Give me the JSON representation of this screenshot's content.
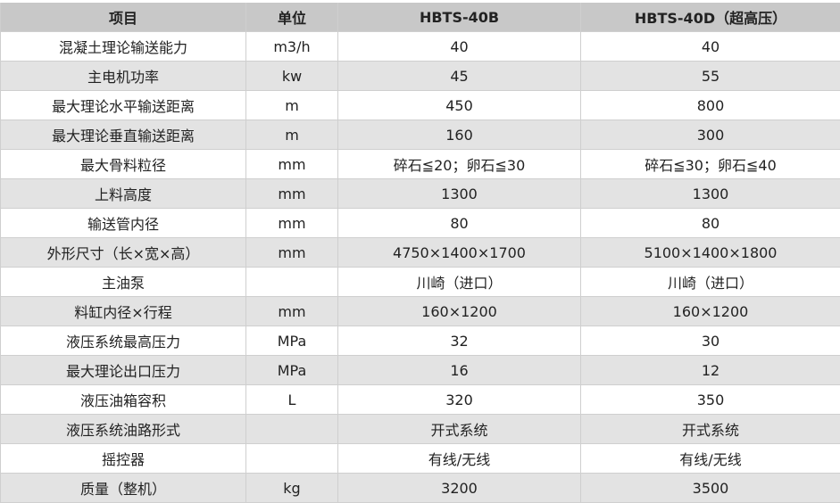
{
  "headers": [
    "项目",
    "单位",
    "HBTS-40B",
    "HBTS-40D（超高压）"
  ],
  "rows": [
    [
      "混凝土理论输送能力",
      "m3/h",
      "40",
      "40"
    ],
    [
      "主电机功率",
      "kw",
      "45",
      "55"
    ],
    [
      "最大理论水平输送距离",
      "m",
      "450",
      "800"
    ],
    [
      "最大理论垂直输送距离",
      "m",
      "160",
      "300"
    ],
    [
      "最大骨料粒径",
      "mm",
      "碎石≦20；卵石≦30",
      "碎石≦30；卵石≦40"
    ],
    [
      "上料高度",
      "mm",
      "1300",
      "1300"
    ],
    [
      "输送管内径",
      "mm",
      "80",
      "80"
    ],
    [
      "外形尺寸（长×宽×高）",
      "mm",
      "4750×1400×1700",
      "5100×1400×1800"
    ],
    [
      "主油泵",
      "",
      "川崎（进口）",
      "川崎（进口）"
    ],
    [
      "料缸内径×行程",
      "mm",
      "160×1200",
      "160×1200"
    ],
    [
      "液压系统最高压力",
      "MPa",
      "32",
      "30"
    ],
    [
      "最大理论出口压力",
      "MPa",
      "16",
      "12"
    ],
    [
      "液压油箱容积",
      "L",
      "320",
      "350"
    ],
    [
      "液压系统油路形式",
      "",
      "开式系统",
      "开式系统"
    ],
    [
      "摇控器",
      "",
      "有线/无线",
      "有线/无线"
    ],
    [
      "质量（整机）",
      "kg",
      "3200",
      "3500"
    ]
  ]
}
